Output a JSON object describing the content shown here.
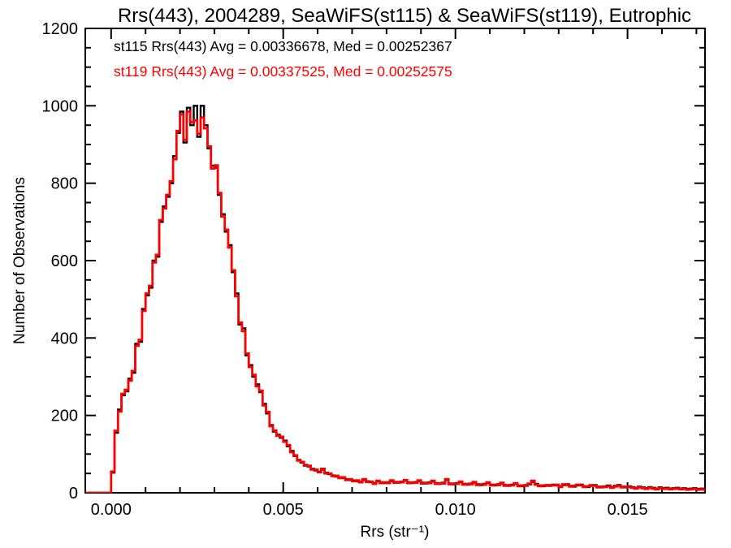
{
  "title": "Rrs(443), 2004289, SeaWiFS(st115) & SeaWiFS(st119), Eutrophic",
  "legend": {
    "st115": {
      "label": "st115 Rrs(443) Avg = 0.00336678, Med = 0.00252367",
      "color": "#000000"
    },
    "st119": {
      "label": "st119 Rrs(443) Avg = 0.00337525, Med = 0.00252575",
      "color": "#ff0000"
    }
  },
  "chart_data": {
    "type": "histogram-step",
    "title": "Rrs(443), 2004289, SeaWiFS(st115) & SeaWiFS(st119), Eutrophic",
    "xlabel": "Rrs (str⁻¹)",
    "ylabel": "Number of Observations",
    "xlim": [
      -0.00075,
      0.01725
    ],
    "ylim": [
      0,
      1200
    ],
    "xticks_major": [
      0.0,
      0.005,
      0.01,
      0.015
    ],
    "xtick_labels": [
      "0.000",
      "0.005",
      "0.010",
      "0.015"
    ],
    "xtick_minor_interval": 0.001,
    "yticks_major": [
      0,
      200,
      400,
      600,
      800,
      1000,
      1200
    ],
    "ytick_labels": [
      "0",
      "200",
      "400",
      "600",
      "800",
      "1000",
      "1200"
    ],
    "ytick_minor_interval": 50,
    "grid": false,
    "legend_position": "top-left-inside",
    "bin_start": 0.0,
    "bin_width": 0.0001,
    "series": [
      {
        "name": "st115",
        "instrument": "SeaWiFS",
        "color": "#000000",
        "avg": "0.00336678",
        "med": "0.00252367",
        "values": [
          52,
          155,
          215,
          252,
          262,
          295,
          310,
          385,
          390,
          475,
          510,
          530,
          600,
          610,
          700,
          740,
          765,
          800,
          870,
          930,
          985,
          905,
          995,
          950,
          1000,
          920,
          1000,
          950,
          890,
          845,
          840,
          770,
          720,
          675,
          640,
          570,
          515,
          435,
          425,
          355,
          330,
          300,
          280,
          260,
          230,
          205,
          175,
          158,
          150,
          142,
          135,
          120,
          108,
          95,
          85,
          78,
          72,
          68,
          62,
          58,
          55,
          60,
          52,
          48,
          45,
          42,
          40,
          38,
          35,
          33,
          32,
          30,
          29,
          33,
          30,
          27,
          25,
          29,
          27,
          25,
          27,
          30,
          28,
          26,
          29,
          31,
          27,
          25,
          28,
          30,
          26,
          24,
          27,
          29,
          25,
          23,
          26,
          33,
          24,
          22,
          25,
          27,
          23,
          21,
          24,
          26,
          22,
          20,
          23,
          25,
          21,
          19,
          22,
          24,
          20,
          18,
          21,
          23,
          19,
          17,
          20,
          22,
          28,
          23,
          19,
          17,
          20,
          18,
          21,
          19,
          17,
          20,
          22,
          18,
          16,
          19,
          21,
          17,
          15,
          18,
          20,
          16,
          14,
          17,
          19,
          15,
          18,
          20,
          16,
          14,
          17,
          15,
          13,
          16,
          14,
          12,
          15,
          13,
          11,
          14,
          12,
          13,
          11,
          12,
          13,
          11,
          12,
          10,
          11,
          12,
          10,
          11,
          10,
          11,
          9
        ]
      },
      {
        "name": "st119",
        "instrument": "SeaWiFS",
        "color": "#ff0000",
        "avg": "0.00337525",
        "med": "0.00252575",
        "values": [
          55,
          160,
          210,
          256,
          266,
          290,
          315,
          380,
          395,
          470,
          515,
          535,
          595,
          615,
          705,
          735,
          770,
          805,
          862,
          935,
          978,
          912,
          985,
          958,
          962,
          928,
          970,
          942,
          895,
          838,
          846,
          775,
          714,
          680,
          634,
          575,
          508,
          440,
          418,
          360,
          325,
          305,
          275,
          264,
          226,
          209,
          172,
          161,
          147,
          145,
          132,
          123,
          105,
          97,
          83,
          80,
          70,
          70,
          60,
          60,
          53,
          62,
          50,
          50,
          43,
          44,
          38,
          40,
          33,
          35,
          30,
          32,
          27,
          35,
          28,
          29,
          23,
          31,
          25,
          27,
          25,
          32,
          26,
          28,
          27,
          33,
          25,
          27,
          26,
          32,
          24,
          26,
          25,
          31,
          23,
          25,
          24,
          35,
          22,
          24,
          23,
          29,
          21,
          23,
          22,
          28,
          20,
          22,
          21,
          27,
          19,
          21,
          20,
          26,
          18,
          20,
          19,
          25,
          17,
          19,
          18,
          24,
          31,
          21,
          17,
          19,
          18,
          20,
          19,
          21,
          15,
          22,
          20,
          16,
          18,
          21,
          19,
          15,
          17,
          20,
          18,
          14,
          16,
          15,
          17,
          13,
          16,
          18,
          14,
          16,
          15,
          13,
          11,
          14,
          12,
          10,
          13,
          11,
          9,
          12,
          10,
          11,
          9,
          10,
          11,
          9,
          10,
          8,
          9,
          10,
          8,
          9,
          8,
          9,
          7
        ]
      }
    ]
  }
}
